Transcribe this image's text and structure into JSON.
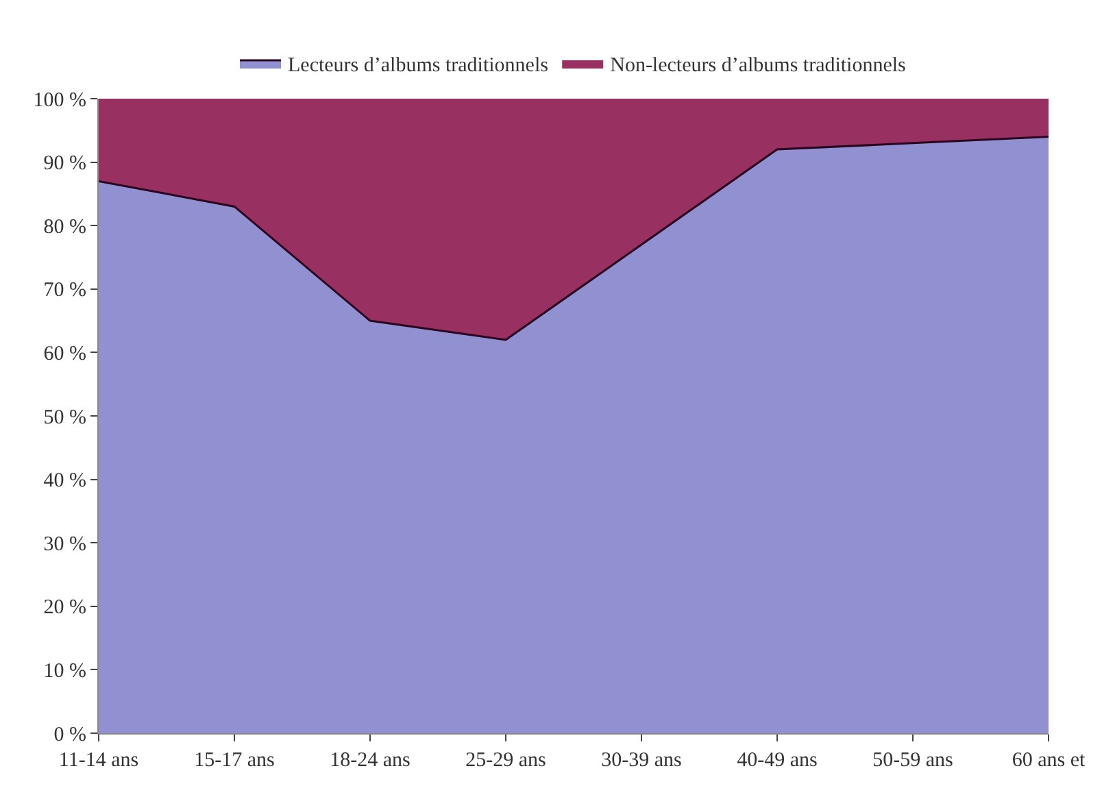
{
  "chart_data": {
    "type": "area",
    "stacked": true,
    "categories": [
      "11-14 ans",
      "15-17 ans",
      "18-24 ans",
      "25-29 ans",
      "30-39 ans",
      "40-49 ans",
      "50-59 ans",
      "60 ans et"
    ],
    "series": [
      {
        "name": "Lecteurs d’albums traditionnels",
        "color": "#9191d1",
        "values": [
          87,
          83,
          65,
          62,
          77,
          92,
          93,
          94
        ]
      },
      {
        "name": "Non-lecteurs d’albums traditionnels",
        "color": "#993062",
        "values": [
          13,
          17,
          35,
          38,
          23,
          8,
          7,
          6
        ]
      }
    ],
    "ylim": [
      0,
      100
    ],
    "yticks": [
      {
        "value": 0,
        "label": "0 %"
      },
      {
        "value": 10,
        "label": "10 %"
      },
      {
        "value": 20,
        "label": "20 %"
      },
      {
        "value": 30,
        "label": "30 %"
      },
      {
        "value": 40,
        "label": "40 %"
      },
      {
        "value": 50,
        "label": "50 %"
      },
      {
        "value": 60,
        "label": "60 %"
      },
      {
        "value": 70,
        "label": "70 %"
      },
      {
        "value": 80,
        "label": "80 %"
      },
      {
        "value": 90,
        "label": "90 %"
      },
      {
        "value": 100,
        "label": "100 %"
      }
    ],
    "legend": "top"
  }
}
